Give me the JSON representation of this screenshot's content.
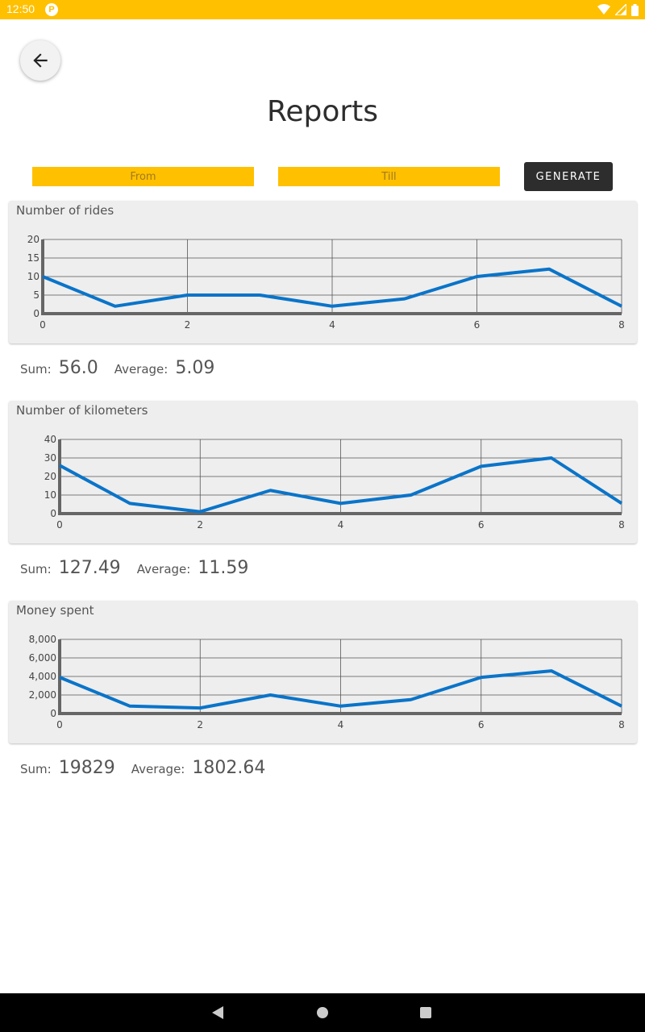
{
  "status_bar": {
    "time": "12:50",
    "app_icon": "P",
    "icons": [
      "wifi-icon",
      "signal-icon",
      "battery-icon"
    ]
  },
  "header": {
    "title": "Reports",
    "back_icon": "arrow-left-icon"
  },
  "filters": {
    "from_placeholder": "From",
    "till_placeholder": "Till",
    "generate_label": "GENERATE"
  },
  "reports": [
    {
      "title": "Number of rides",
      "sum_label": "Sum:",
      "sum": "56.0",
      "avg_label": "Average:",
      "avg": "5.09"
    },
    {
      "title": "Number of kilometers",
      "sum_label": "Sum:",
      "sum": "127.49",
      "avg_label": "Average:",
      "avg": "11.59"
    },
    {
      "title": "Money spent",
      "sum_label": "Sum:",
      "sum": "19829",
      "avg_label": "Average:",
      "avg": "1802.64"
    }
  ],
  "chart_data": [
    {
      "type": "line",
      "title": "Number of rides",
      "x": [
        0,
        1,
        2,
        3,
        4,
        5,
        6,
        7,
        8
      ],
      "x_ticks": [
        "0",
        "2",
        "4",
        "6",
        "8"
      ],
      "y_ticks": [
        "0",
        "5",
        "10",
        "15",
        "20"
      ],
      "values": [
        10,
        2,
        5,
        5,
        2,
        4,
        10,
        12,
        2
      ],
      "xlim": [
        0,
        8
      ],
      "ylim": [
        0,
        20
      ],
      "grid": true,
      "color": "#0a74c9"
    },
    {
      "type": "line",
      "title": "Number of kilometers",
      "x": [
        0,
        1,
        2,
        3,
        4,
        5,
        6,
        7,
        8
      ],
      "x_ticks": [
        "0",
        "2",
        "4",
        "6",
        "8"
      ],
      "y_ticks": [
        "0",
        "10",
        "20",
        "30",
        "40"
      ],
      "values": [
        26,
        5.5,
        1,
        12.5,
        5.5,
        10,
        25.5,
        30,
        5.5
      ],
      "xlim": [
        0,
        8
      ],
      "ylim": [
        0,
        40
      ],
      "grid": true,
      "color": "#0a74c9"
    },
    {
      "type": "line",
      "title": "Money spent",
      "x": [
        0,
        1,
        2,
        3,
        4,
        5,
        6,
        7,
        8
      ],
      "x_ticks": [
        "0",
        "2",
        "4",
        "6",
        "8"
      ],
      "y_ticks": [
        "0",
        "2,000",
        "4,000",
        "6,000",
        "8,000"
      ],
      "values": [
        3900,
        800,
        600,
        2000,
        800,
        1500,
        3900,
        4600,
        800
      ],
      "xlim": [
        0,
        8
      ],
      "ylim": [
        0,
        8000
      ],
      "grid": true,
      "color": "#0a74c9"
    }
  ]
}
